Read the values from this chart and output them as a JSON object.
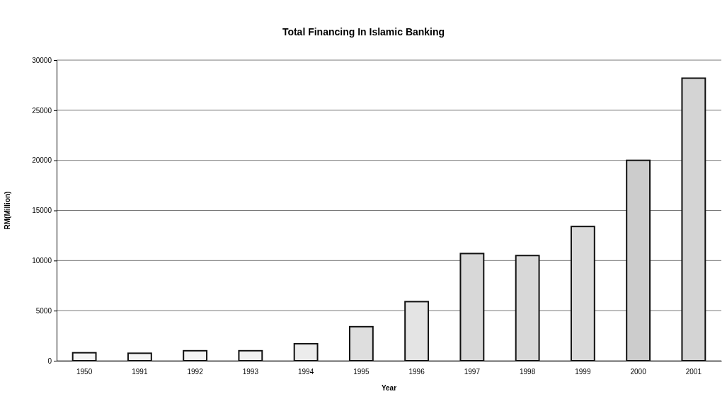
{
  "chart_data": {
    "type": "bar",
    "title": "Total Financing In Islamic Banking",
    "xlabel": "Year",
    "ylabel": "RM(Million)",
    "categories": [
      "1950",
      "1991",
      "1992",
      "1993",
      "1994",
      "1995",
      "1996",
      "1997",
      "1998",
      "1999",
      "2000",
      "2001"
    ],
    "values": [
      800,
      750,
      1000,
      1000,
      1700,
      3400,
      5900,
      10700,
      10500,
      13400,
      20000,
      28200
    ],
    "colors": [
      "#f4f4f4",
      "#f4f4f4",
      "#f4f4f4",
      "#f0f0f0",
      "#ececec",
      "#dedede",
      "#e4e4e4",
      "#d8d8d8",
      "#d8d8d8",
      "#dadada",
      "#cccccc",
      "#d4d4d4"
    ],
    "ylim": [
      0,
      30000
    ],
    "yticks": [
      0,
      5000,
      10000,
      15000,
      20000,
      25000,
      30000
    ],
    "grid": "y"
  }
}
